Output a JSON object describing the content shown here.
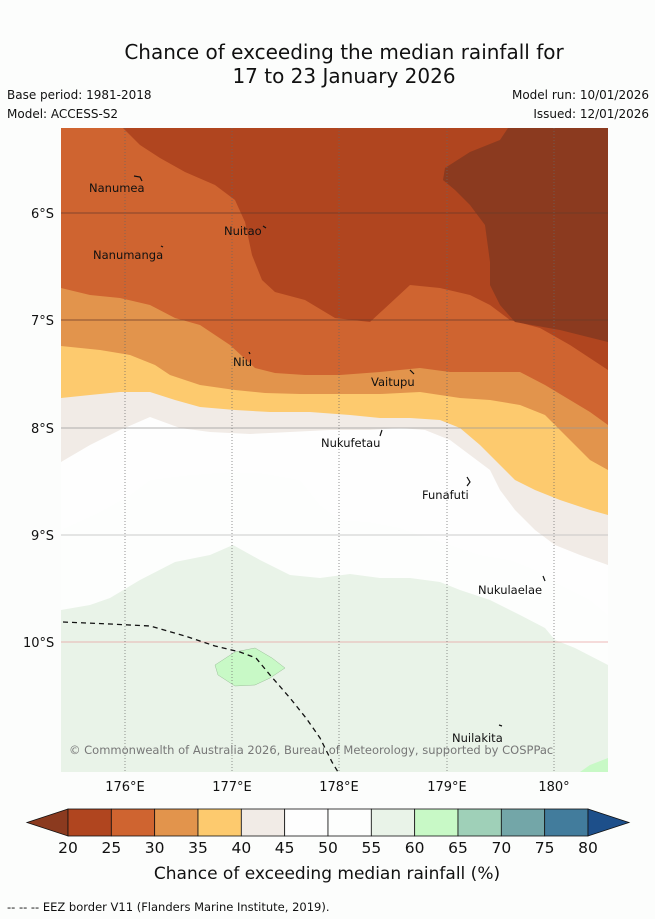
{
  "title_line1": "Chance of exceeding the median rainfall for",
  "title_line2": "17 to 23 January 2026",
  "base_period": "Base period: 1981-2018",
  "model": "Model: ACCESS-S2",
  "model_run": "Model run: 10/01/2026",
  "issued": "Issued: 12/01/2026",
  "lat_labels": [
    "6°S",
    "7°S",
    "8°S",
    "9°S",
    "10°S"
  ],
  "lon_labels": [
    "176°E",
    "177°E",
    "178°E",
    "179°E",
    "180°"
  ],
  "places": {
    "nanumea": "Nanumea",
    "nuitao": "Nuitao",
    "nanumanga": "Nanumanga",
    "niu": "Niu",
    "vaitupu": "Vaitupu",
    "nukufetau": "Nukufetau",
    "funafuti": "Funafuti",
    "nukulaelae": "Nukulaelae",
    "nuilakita": "Nuilakita"
  },
  "copyright": "© Commonwealth of Australia 2026, Bureau of Meteorology, supported by COSPPac",
  "colorbar": {
    "ticks": [
      "20",
      "25",
      "30",
      "35",
      "40",
      "45",
      "50",
      "55",
      "60",
      "65",
      "70",
      "75",
      "80"
    ],
    "colors": [
      "#8b3a1f",
      "#b0451f",
      "#cf6430",
      "#e2944c",
      "#fdca6e",
      "#f1ebe6",
      "#fefefe",
      "#fdfefd",
      "#e9f3e8",
      "#c8f9c6",
      "#9fd0b8",
      "#73a6a8",
      "#427c9c",
      "#1d4f8a"
    ],
    "label": "Chance of exceeding median rainfall (%)"
  },
  "footnote": "-- -- -- EEZ border V11 (Flanders Marine Institute, 2019)."
}
